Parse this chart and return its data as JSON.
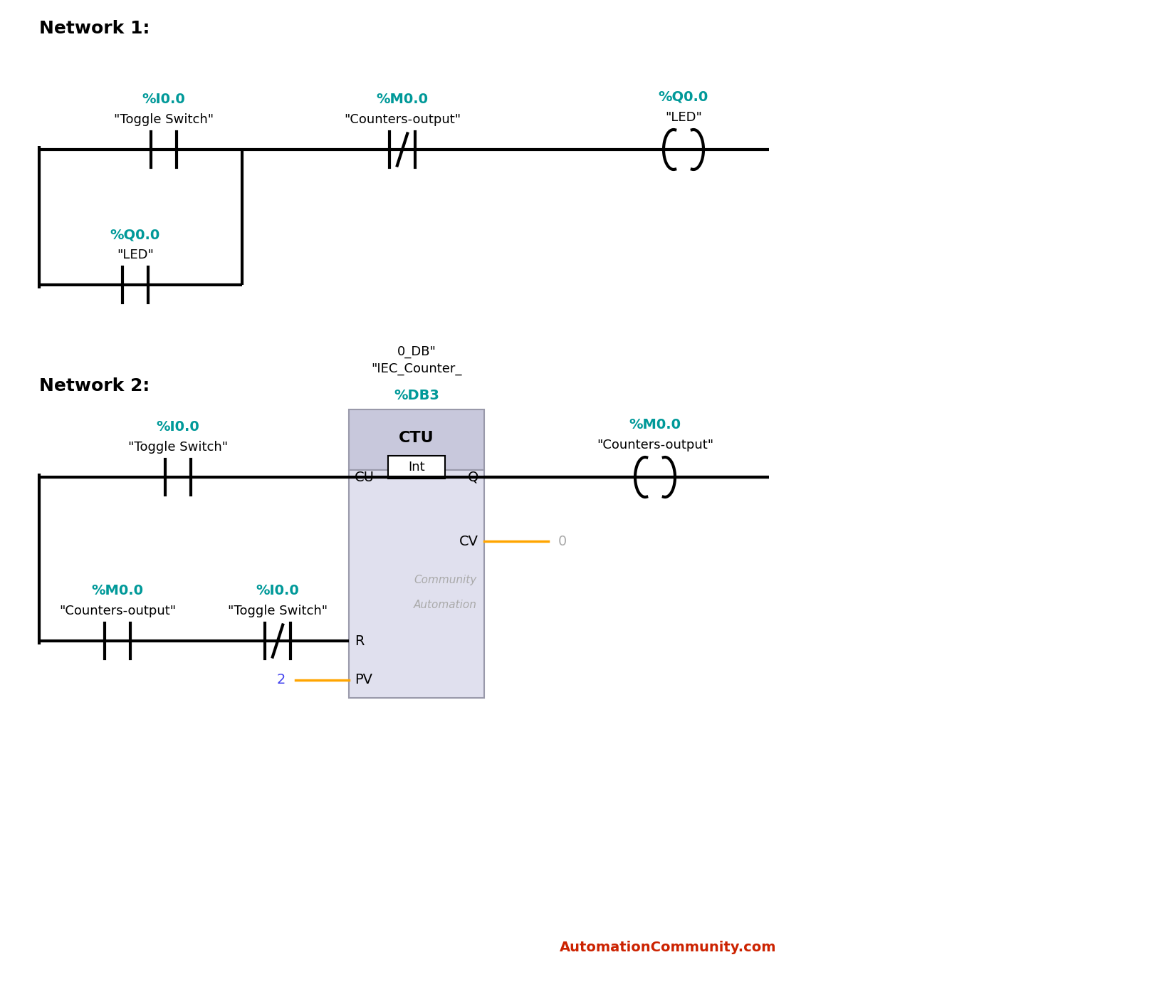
{
  "bg_color": "#ffffff",
  "teal": "#009999",
  "black": "#000000",
  "orange": "#FFA500",
  "blue_val": "#4444EE",
  "red": "#CC2200",
  "gray": "#AAAAAA",
  "box_fill_header": "#C8C8DC",
  "box_fill_body": "#E0E0EE",
  "box_edge": "#9999AA",
  "net1_label": "Network 1:",
  "net2_label": "Network 2:",
  "watermark": "AutomationCommunity.com",
  "n1_c1_addr": "%I0.0",
  "n1_c1_name": "\"Toggle Switch\"",
  "n1_c2_addr": "%M0.0",
  "n1_c2_name": "\"Counters-output\"",
  "n1_coil_addr": "%Q0.0",
  "n1_coil_name": "\"LED\"",
  "n1_br_addr": "%Q0.0",
  "n1_br_name": "\"LED\"",
  "n2_c1_addr": "%I0.0",
  "n2_c1_name": "\"Toggle Switch\"",
  "n2_db_addr": "%DB3",
  "n2_db_line1": "\"IEC_Counter_",
  "n2_db_line2": "0_DB\"",
  "n2_coil_addr": "%M0.0",
  "n2_coil_name": "\"Counters-output\"",
  "n2_br_m_addr": "%M0.0",
  "n2_br_m_name": "\"Counters-output\"",
  "n2_br_i_addr": "%I0.0",
  "n2_br_i_name": "\"Toggle Switch\"",
  "ctu_title": "CTU",
  "ctu_sub": "Int",
  "ctu_cu": "CU",
  "ctu_q": "Q",
  "ctu_cv": "CV",
  "ctu_r": "R",
  "ctu_pv": "PV",
  "ctu_cv_val": "0",
  "ctu_pv_val": "2",
  "auto_text1": "Automation",
  "auto_text2": "Community"
}
